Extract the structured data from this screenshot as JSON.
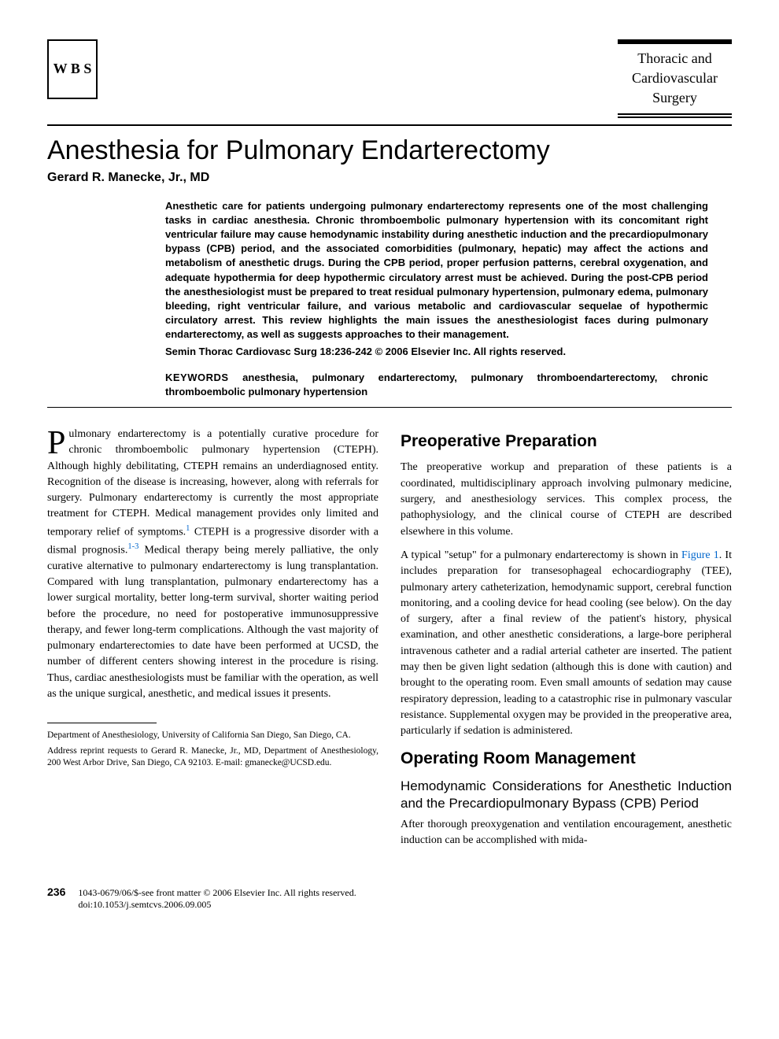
{
  "journal": {
    "publisher_initials": "W\nB\nS",
    "name_line1": "Thoracic and",
    "name_line2": "Cardiovascular",
    "name_line3": "Surgery"
  },
  "article": {
    "title": "Anesthesia for Pulmonary Endarterectomy",
    "author": "Gerard R. Manecke, Jr., MD"
  },
  "abstract": {
    "text": "Anesthetic care for patients undergoing pulmonary endarterectomy represents one of the most challenging tasks in cardiac anesthesia. Chronic thromboembolic pulmonary hypertension with its concomitant right ventricular failure may cause hemodynamic instability during anesthetic induction and the precardiopulmonary bypass (CPB) period, and the associated comorbidities (pulmonary, hepatic) may affect the actions and metabolism of anesthetic drugs. During the CPB period, proper perfusion patterns, cerebral oxygenation, and adequate hypothermia for deep hypothermic circulatory arrest must be achieved. During the post-CPB period the anesthesiologist must be prepared to treat residual pulmonary hypertension, pulmonary edema, pulmonary bleeding, right ventricular failure, and various metabolic and cardiovascular sequelae of hypothermic circulatory arrest. This review highlights the main issues the anesthesiologist faces during pulmonary endarterectomy, as well as suggests approaches to their management.",
    "citation": "Semin Thorac Cardiovasc Surg 18:236-242 © 2006 Elsevier Inc. All rights reserved.",
    "keywords_label": "KEYWORDS",
    "keywords": "anesthesia, pulmonary endarterectomy, pulmonary thromboendarterectomy, chronic thromboembolic pulmonary hypertension"
  },
  "body": {
    "intro_dropcap": "P",
    "intro_p1a": "ulmonary endarterectomy is a potentially curative procedure for chronic thromboembolic pulmonary hypertension (CTEPH). Although highly debilitating, CTEPH remains an underdiagnosed entity. Recognition of the disease is increasing, however, along with referrals for surgery. Pulmonary endarterectomy is currently the most appropriate treatment for CTEPH. Medical management provides only limited and temporary relief of symptoms.",
    "ref1": "1",
    "intro_p1b": " CTEPH is a progressive disorder with a dismal prognosis.",
    "ref13": "1-3",
    "intro_p1c": " Medical therapy being merely palliative, the only curative alternative to pulmonary endarterectomy is lung transplantation. Compared with lung transplantation, pulmonary endarterectomy has a lower surgical mortality, better long-term survival, shorter waiting period before the procedure, no need for postoperative immunosuppressive therapy, and fewer long-term complications. Although the vast majority of pulmonary endarterectomies to date have been performed at UCSD, the number of different centers showing interest in the procedure is rising. Thus, cardiac anesthesiologists must be familiar with the operation, as well as the unique surgical, anesthetic, and medical issues it presents.",
    "sec1_heading": "Preoperative Preparation",
    "sec1_p1": "The preoperative workup and preparation of these patients is a coordinated, multidisciplinary approach involving pulmonary medicine, surgery, and anesthesiology services. This complex process, the pathophysiology, and the clinical course of CTEPH are described elsewhere in this volume.",
    "sec1_p2a": "A typical \"setup\" for a pulmonary endarterectomy is shown in ",
    "fig1": "Figure 1",
    "sec1_p2b": ". It includes preparation for transesophageal echocardiography (TEE), pulmonary artery catheterization, hemodynamic support, cerebral function monitoring, and a cooling device for head cooling (see below). On the day of surgery, after a final review of the patient's history, physical examination, and other anesthetic considerations, a large-bore peripheral intravenous catheter and a radial arterial catheter are inserted. The patient may then be given light sedation (although this is done with caution) and brought to the operating room. Even small amounts of sedation may cause respiratory depression, leading to a catastrophic rise in pulmonary vascular resistance. Supplemental oxygen may be provided in the preoperative area, particularly if sedation is administered.",
    "sec2_heading": "Operating Room Management",
    "sec2_sub1": "Hemodynamic Considerations for Anesthetic Induction and the Precardiopulmonary Bypass (CPB) Period",
    "sec2_p1": "After thorough preoxygenation and ventilation encouragement, anesthetic induction can be accomplished with mida-"
  },
  "affiliation": {
    "dept": "Department of Anesthesiology, University of California San Diego, San Diego, CA.",
    "reprint": "Address reprint requests to Gerard R. Manecke, Jr., MD, Department of Anesthesiology, 200 West Arbor Drive, San Diego, CA 92103. E-mail: gmanecke@UCSD.edu."
  },
  "footer": {
    "page": "236",
    "copyright": "1043-0679/06/$-see front matter © 2006 Elsevier Inc. All rights reserved.",
    "doi": "doi:10.1053/j.semtcvs.2006.09.005"
  },
  "colors": {
    "text": "#000000",
    "background": "#ffffff",
    "link": "#0066cc"
  }
}
